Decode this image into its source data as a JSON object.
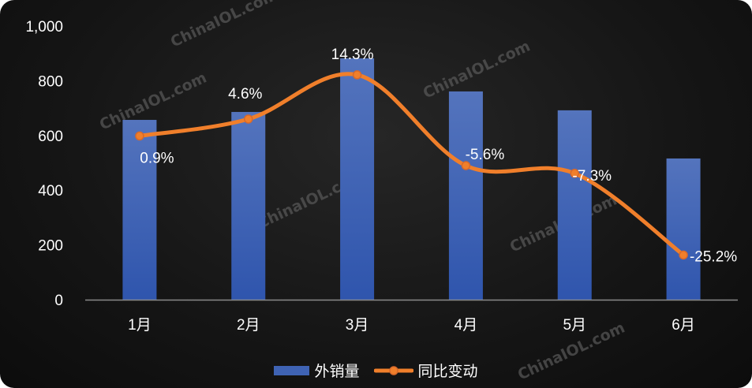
{
  "chart_data": {
    "type": "bar+line",
    "categories": [
      "1月",
      "2月",
      "3月",
      "4月",
      "5月",
      "6月"
    ],
    "series": [
      {
        "name": "外销量",
        "type": "bar",
        "axis": "primary",
        "values": [
          657,
          686,
          882,
          761,
          692,
          516
        ],
        "color": "#3f63b4"
      },
      {
        "name": "同比变动",
        "type": "line",
        "axis": "secondary",
        "values": [
          0.9,
          4.6,
          14.3,
          -5.6,
          -7.3,
          -25.2
        ],
        "labels": [
          "0.9%",
          "4.6%",
          "14.3%",
          "-5.6%",
          "-7.3%",
          "-25.2%"
        ],
        "color": "#f07f2b",
        "smooth": true
      }
    ],
    "yticks": [
      "0",
      "200",
      "400",
      "600",
      "800",
      "1,000"
    ],
    "ylim": [
      0,
      1000
    ],
    "y2lim": [
      -35,
      25
    ],
    "y2_visible": false,
    "grid": false,
    "legend": "bottom",
    "watermark": "ChinaIOL.com"
  }
}
